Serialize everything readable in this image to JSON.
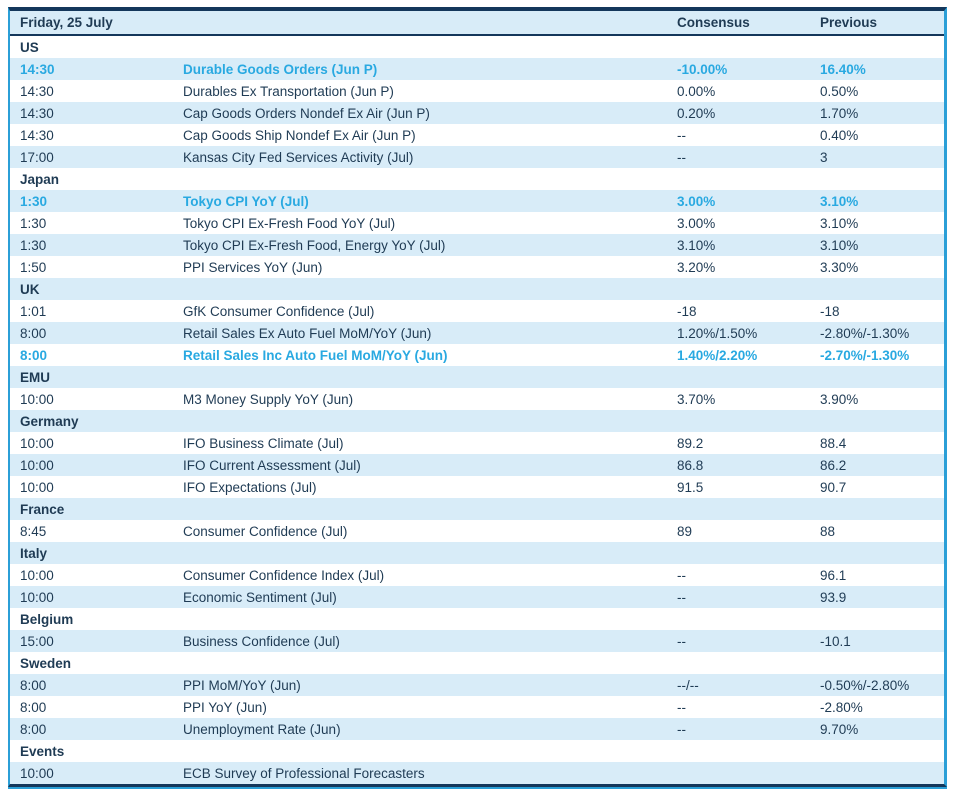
{
  "table": {
    "title": "Friday, 25 July",
    "columns": {
      "consensus": "Consensus",
      "previous": "Previous"
    },
    "sections": [
      {
        "name": "US",
        "rows": [
          {
            "time": "14:30",
            "event": "Durable Goods Orders (Jun P)",
            "consensus": "-10.00%",
            "previous": "16.40%",
            "highlight": true
          },
          {
            "time": "14:30",
            "event": "Durables Ex Transportation (Jun P)",
            "consensus": "0.00%",
            "previous": "0.50%",
            "highlight": false
          },
          {
            "time": "14:30",
            "event": "Cap Goods Orders Nondef Ex Air (Jun P)",
            "consensus": "0.20%",
            "previous": "1.70%",
            "highlight": false
          },
          {
            "time": "14:30",
            "event": "Cap Goods Ship Nondef Ex Air (Jun P)",
            "consensus": "--",
            "previous": "0.40%",
            "highlight": false
          },
          {
            "time": "17:00",
            "event": "Kansas City Fed Services Activity (Jul)",
            "consensus": "--",
            "previous": "3",
            "highlight": false
          }
        ]
      },
      {
        "name": "Japan",
        "rows": [
          {
            "time": "1:30",
            "event": "Tokyo CPI YoY (Jul)",
            "consensus": "3.00%",
            "previous": "3.10%",
            "highlight": true
          },
          {
            "time": "1:30",
            "event": "Tokyo CPI Ex-Fresh Food YoY (Jul)",
            "consensus": "3.00%",
            "previous": "3.10%",
            "highlight": false
          },
          {
            "time": "1:30",
            "event": "Tokyo CPI Ex-Fresh Food, Energy YoY (Jul)",
            "consensus": "3.10%",
            "previous": "3.10%",
            "highlight": false
          },
          {
            "time": "1:50",
            "event": "PPI Services YoY (Jun)",
            "consensus": "3.20%",
            "previous": "3.30%",
            "highlight": false
          }
        ]
      },
      {
        "name": "UK",
        "rows": [
          {
            "time": "1:01",
            "event": "GfK Consumer Confidence (Jul)",
            "consensus": "-18",
            "previous": "-18",
            "highlight": false
          },
          {
            "time": "8:00",
            "event": "Retail Sales Ex Auto Fuel MoM/YoY (Jun)",
            "consensus": "1.20%/1.50%",
            "previous": "-2.80%/-1.30%",
            "highlight": false
          },
          {
            "time": "8:00",
            "event": "Retail Sales Inc Auto Fuel MoM/YoY (Jun)",
            "consensus": "1.40%/2.20%",
            "previous": "-2.70%/-1.30%",
            "highlight": true
          }
        ]
      },
      {
        "name": "EMU",
        "rows": [
          {
            "time": "10:00",
            "event": "M3 Money Supply YoY (Jun)",
            "consensus": "3.70%",
            "previous": "3.90%",
            "highlight": false
          }
        ]
      },
      {
        "name": "Germany",
        "rows": [
          {
            "time": "10:00",
            "event": "IFO Business Climate (Jul)",
            "consensus": "89.2",
            "previous": "88.4",
            "highlight": false
          },
          {
            "time": "10:00",
            "event": "IFO Current Assessment (Jul)",
            "consensus": "86.8",
            "previous": "86.2",
            "highlight": false
          },
          {
            "time": "10:00",
            "event": "IFO Expectations (Jul)",
            "consensus": "91.5",
            "previous": "90.7",
            "highlight": false
          }
        ]
      },
      {
        "name": "France",
        "rows": [
          {
            "time": "8:45",
            "event": "Consumer Confidence (Jul)",
            "consensus": "89",
            "previous": "88",
            "highlight": false
          }
        ]
      },
      {
        "name": "Italy",
        "rows": [
          {
            "time": "10:00",
            "event": "Consumer Confidence Index (Jul)",
            "consensus": "--",
            "previous": "96.1",
            "highlight": false
          },
          {
            "time": "10:00",
            "event": "Economic Sentiment (Jul)",
            "consensus": "--",
            "previous": "93.9",
            "highlight": false
          }
        ]
      },
      {
        "name": "Belgium",
        "rows": [
          {
            "time": "15:00",
            "event": "Business Confidence (Jul)",
            "consensus": "--",
            "previous": "-10.1",
            "highlight": false
          }
        ]
      },
      {
        "name": "Sweden",
        "rows": [
          {
            "time": "8:00",
            "event": "PPI MoM/YoY (Jun)",
            "consensus": "--/--",
            "previous": "-0.50%/-2.80%",
            "highlight": false
          },
          {
            "time": "8:00",
            "event": "PPI YoY (Jun)",
            "consensus": "--",
            "previous": "-2.80%",
            "highlight": false
          },
          {
            "time": "8:00",
            "event": "Unemployment Rate (Jun)",
            "consensus": "--",
            "previous": "9.70%",
            "highlight": false
          }
        ]
      },
      {
        "name": "Events",
        "rows": [
          {
            "time": "10:00",
            "event": "ECB Survey of Professional Forecasters",
            "consensus": "",
            "previous": "",
            "highlight": false
          }
        ]
      }
    ]
  },
  "colors": {
    "navy": "#14375b",
    "text_navy": "#1f3b54",
    "highlight_cyan": "#29a9e1",
    "border_cyan": "#2b9fd7",
    "row_blue": "#d8ecf8",
    "row_white": "#ffffff"
  }
}
